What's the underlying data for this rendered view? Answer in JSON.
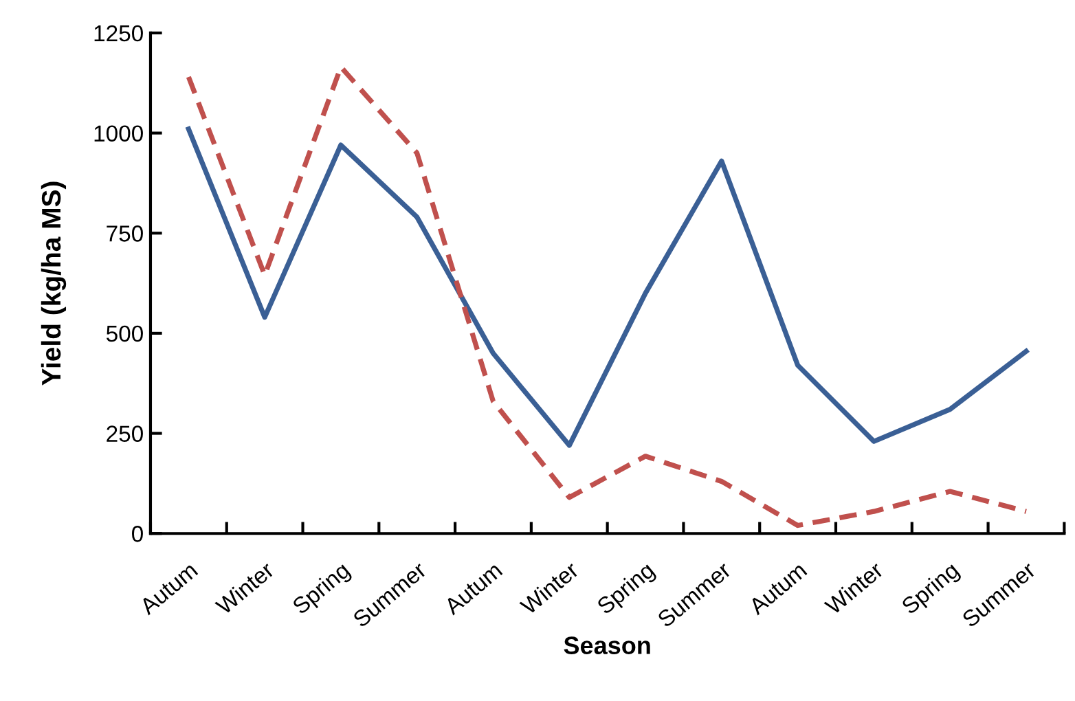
{
  "chart_data": {
    "type": "line",
    "xlabel": "Season",
    "ylabel": "Yield (kg/ha MS)",
    "categories": [
      "Autum",
      "Winter",
      "Spring",
      "Summer",
      "Autum",
      "Winter",
      "Spring",
      "Summer",
      "Autum",
      "Winter",
      "Spring",
      "Summer"
    ],
    "series": [
      {
        "color": "#3a5f95",
        "line_style": "solid",
        "values": [
          1010,
          540,
          970,
          790,
          450,
          220,
          600,
          930,
          420,
          230,
          310,
          455
        ]
      },
      {
        "color": "#c0504d",
        "line_style": "dashed",
        "values": [
          1140,
          645,
          1165,
          950,
          330,
          90,
          193,
          130,
          20,
          55,
          105,
          55
        ]
      }
    ],
    "ylim": [
      0,
      1250
    ],
    "yticks": [
      0,
      250,
      500,
      750,
      1000,
      1250
    ],
    "grid": false,
    "legend": false,
    "marker": "none"
  }
}
